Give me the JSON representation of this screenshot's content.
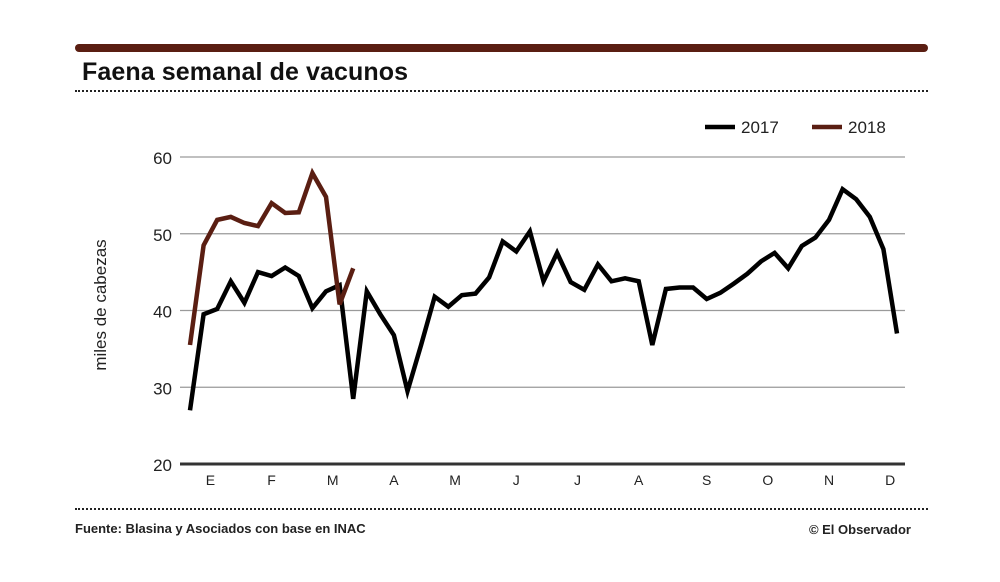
{
  "title": "Faena semanal de vacunos",
  "source": "Fuente: Blasina y Asociados con base en INAC",
  "credit": "© El Observador",
  "colors": {
    "2017": "#000000",
    "2018": "#5a1e12",
    "rule": "#5a1e12",
    "grid": "#9a9a9a"
  },
  "chart_data": {
    "type": "line",
    "title": "Faena semanal de vacunos",
    "ylabel": "miles de cabezas",
    "ylim": [
      20,
      60
    ],
    "yticks": [
      20,
      30,
      40,
      50,
      60
    ],
    "x_unit": "week of year",
    "xlim": [
      1,
      52
    ],
    "month_labels": [
      "E",
      "F",
      "M",
      "A",
      "M",
      "J",
      "J",
      "A",
      "S",
      "O",
      "N",
      "D"
    ],
    "month_label_weeks": [
      2.5,
      7,
      11.5,
      16,
      20.5,
      25,
      29.5,
      34,
      39,
      43.5,
      48,
      52.5
    ],
    "grid": true,
    "legend_position": "top-right",
    "series": [
      {
        "name": "2017",
        "x": [
          1,
          2,
          3,
          4,
          5,
          6,
          7,
          8,
          9,
          10,
          11,
          12,
          13,
          14,
          15,
          16,
          17,
          18,
          19,
          20,
          21,
          22,
          23,
          24,
          25,
          26,
          27,
          28,
          29,
          30,
          31,
          32,
          33,
          34,
          35,
          36,
          37,
          38,
          39,
          40,
          41,
          42,
          43,
          44,
          45,
          46,
          47,
          48,
          49,
          50,
          51,
          52,
          53
        ],
        "values": [
          27,
          39.5,
          40.2,
          43.8,
          41,
          45,
          44.5,
          45.6,
          44.5,
          40.3,
          42.5,
          43.3,
          28.5,
          42.5,
          39.5,
          36.8,
          29.5,
          35.5,
          41.8,
          40.5,
          42,
          42.2,
          44.3,
          49,
          47.7,
          50.3,
          43.8,
          47.5,
          43.7,
          42.7,
          46,
          43.8,
          44.2,
          43.8,
          35.5,
          42.8,
          43,
          43,
          41.5,
          42.3,
          43.5,
          44.8,
          46.4,
          47.5,
          45.5,
          48.4,
          49.5,
          51.8,
          55.8,
          54.5,
          52.2,
          48,
          37
        ]
      },
      {
        "name": "2018",
        "x": [
          1,
          2,
          3,
          4,
          5,
          6,
          7,
          8,
          9,
          10,
          11,
          12,
          13
        ],
        "values": [
          35.5,
          48.5,
          51.8,
          52.2,
          51.4,
          51,
          54,
          52.7,
          52.8,
          57.9,
          54.8,
          40.8,
          45.5
        ]
      }
    ]
  }
}
